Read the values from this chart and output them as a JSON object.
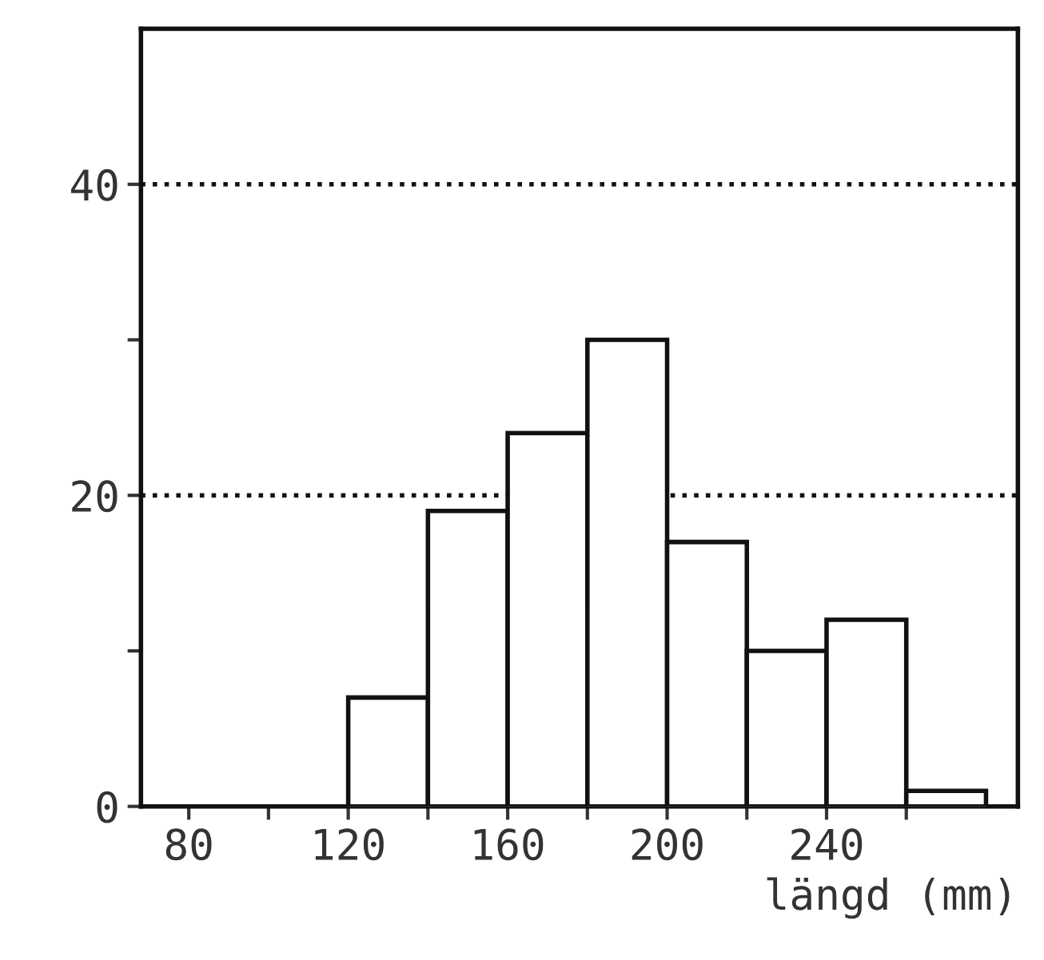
{
  "chart_data": {
    "type": "histogram",
    "xlabel": "längd (mm)",
    "bins": [
      120,
      140,
      160,
      180,
      200,
      220,
      240,
      260,
      280
    ],
    "values": [
      7,
      19,
      24,
      30,
      17,
      10,
      12,
      1
    ],
    "color": "#ffffff",
    "xlim": [
      68,
      288
    ],
    "xticks": [
      80,
      {
        "value": 100,
        "label": null
      },
      120,
      {
        "value": 140,
        "label": null
      },
      160,
      {
        "value": 180,
        "label": null
      },
      200,
      {
        "value": 220,
        "label": null
      },
      240,
      {
        "value": 260,
        "label": null
      }
    ],
    "ylim": [
      0,
      50
    ],
    "yticks": [
      0,
      {
        "value": 10,
        "label": null
      },
      20,
      {
        "value": 30,
        "label": null
      },
      40
    ],
    "ref_lines": [
      {
        "axis": "y",
        "value": 20,
        "color": "#111111",
        "line_style": "dotted"
      },
      {
        "axis": "y",
        "value": 40,
        "color": "#111111",
        "line_style": "dotted"
      }
    ],
    "grid": false
  }
}
